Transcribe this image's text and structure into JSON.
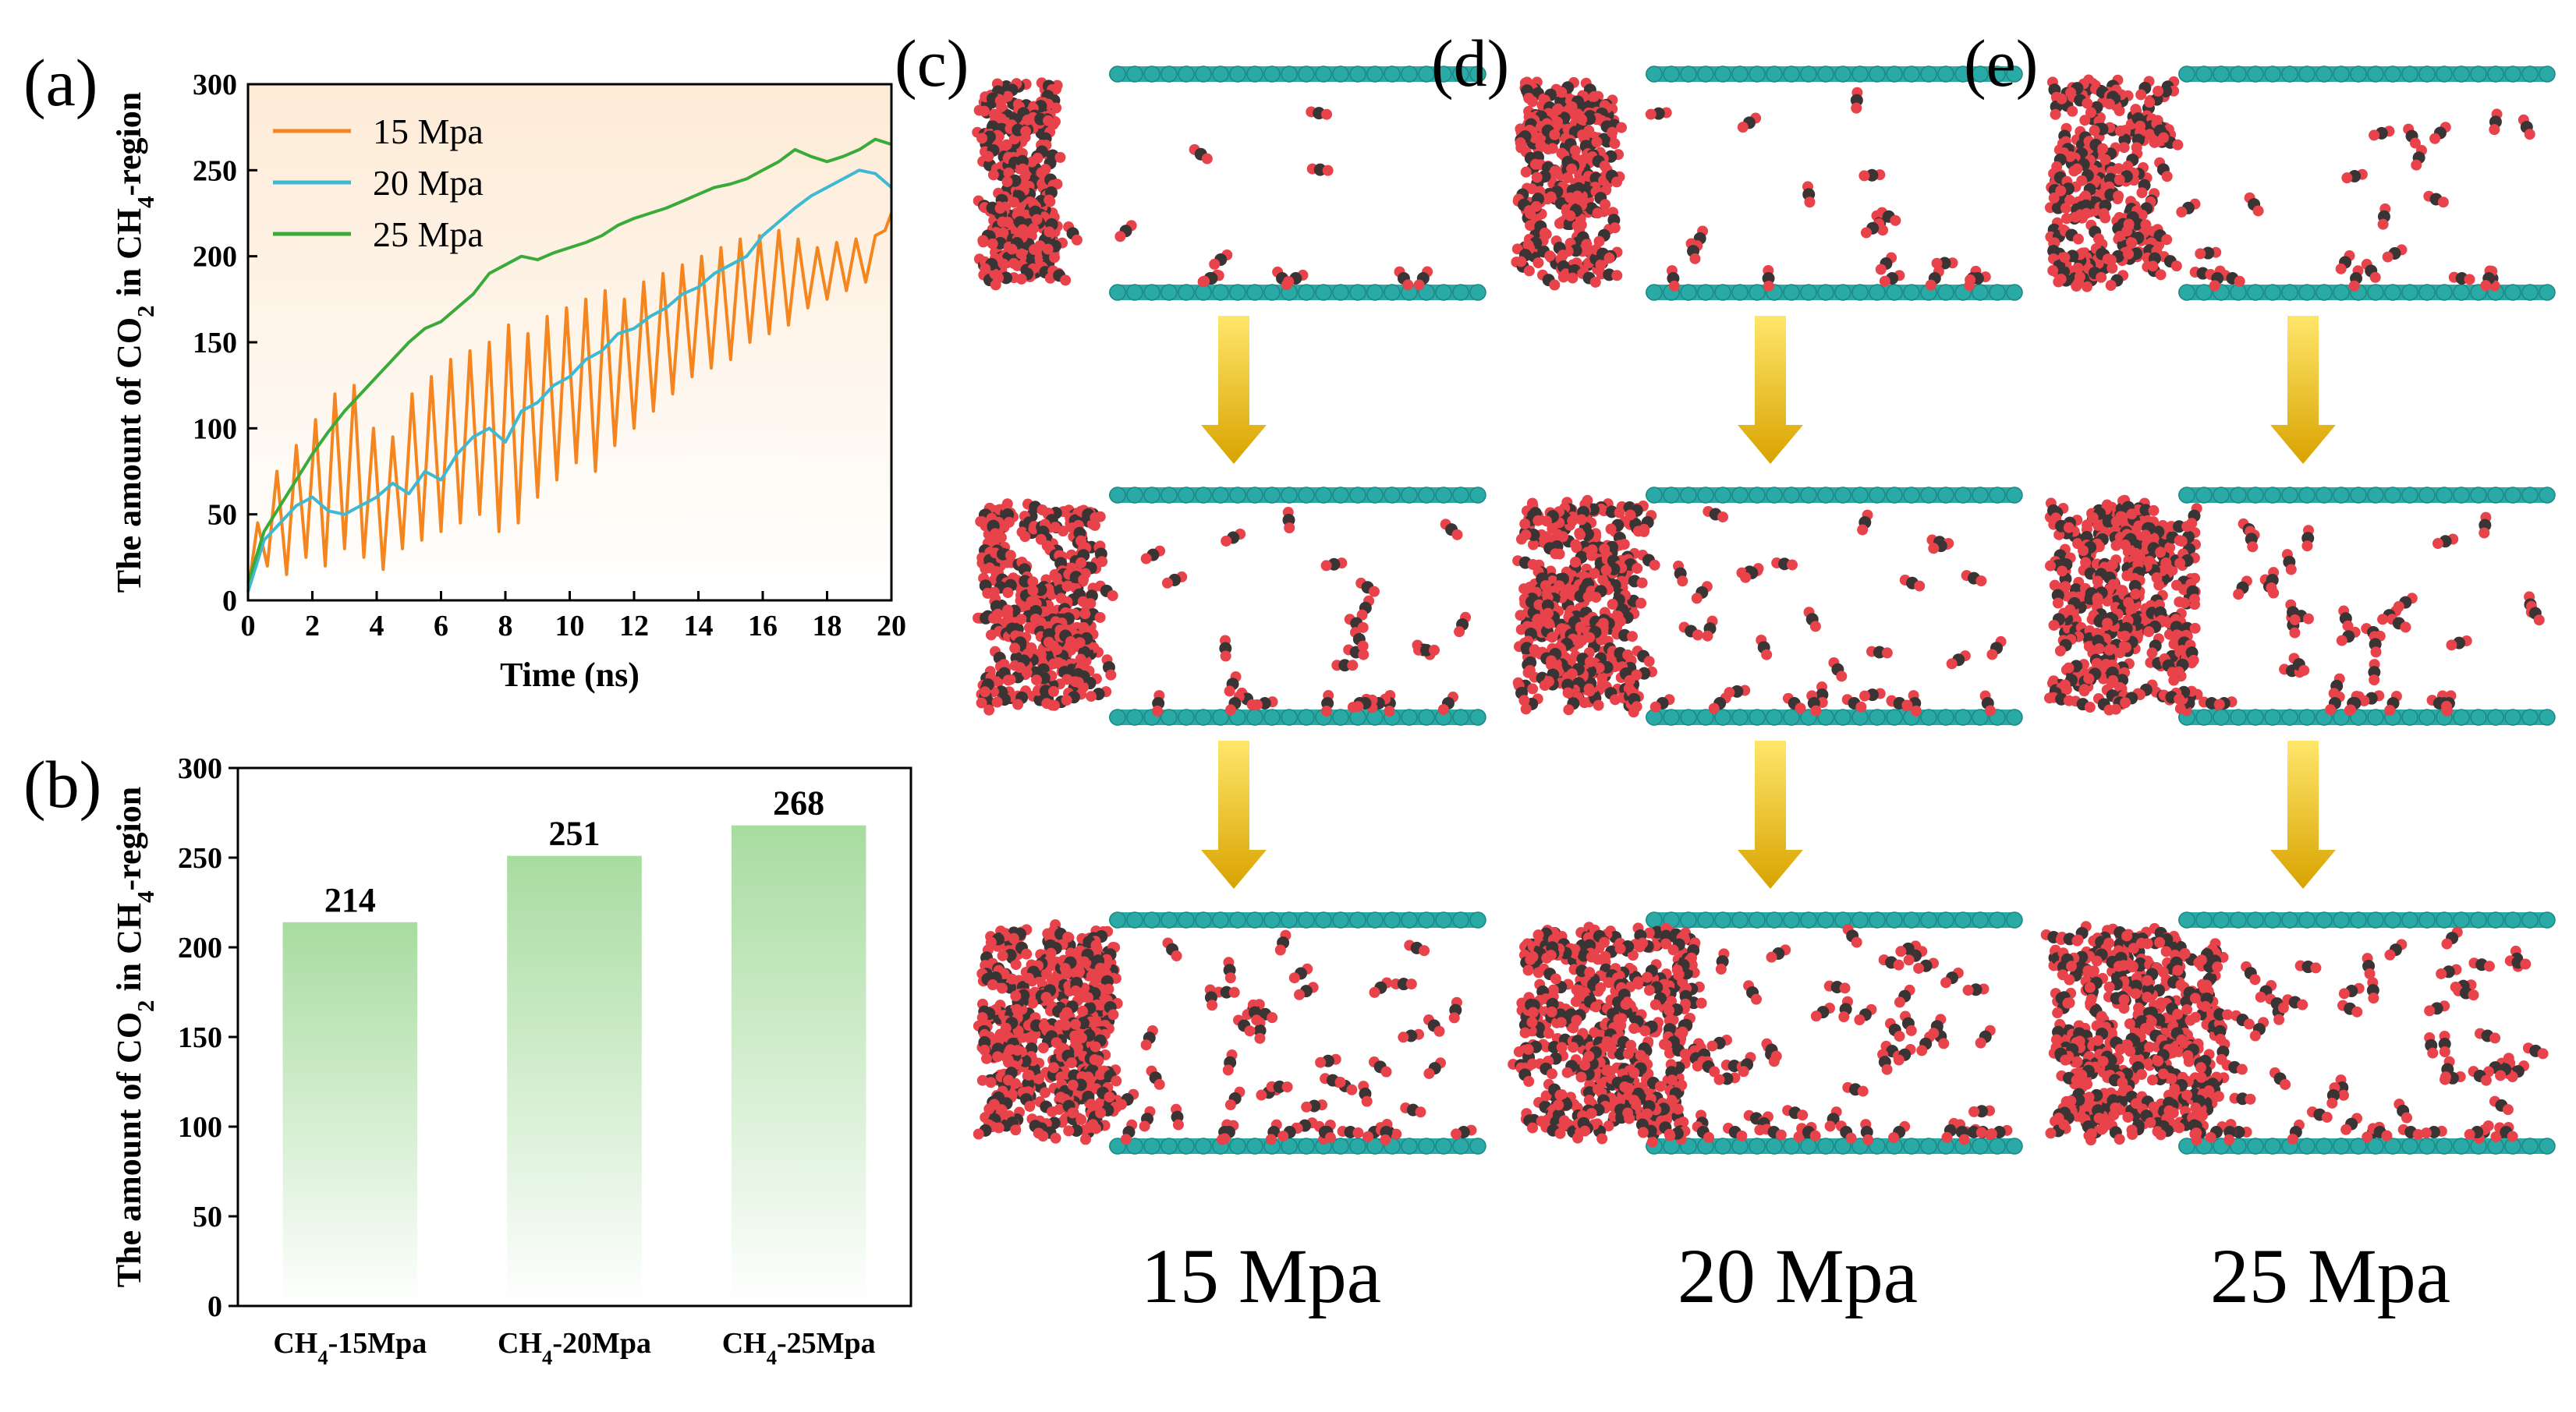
{
  "panel_labels": {
    "a": "(a)",
    "b": "(b)",
    "c": "(c)",
    "d": "(d)",
    "e": "(e)"
  },
  "colors": {
    "s15": "#f5851f",
    "s20": "#3fb8d1",
    "s25": "#3aab3a",
    "bar_top": "#a8dca0",
    "membrane": "#2aaaa6",
    "co2_carbon": "#3a3434",
    "co2_oxygen": "#e8424a",
    "arrow_top": "#ffe66b",
    "arrow_bottom": "#d9a300"
  },
  "snapshot_columns": [
    {
      "letter": "(c)",
      "pressure_label": "15 Mpa"
    },
    {
      "letter": "(d)",
      "pressure_label": "20 Mpa"
    },
    {
      "letter": "(e)",
      "pressure_label": "25 Mpa"
    }
  ],
  "chart_data": [
    {
      "type": "line",
      "panel": "(a)",
      "xlabel": "Time (ns)",
      "ylabel": "The amount of CO<sub>2</sub> in CH<sub>4</sub>-region",
      "xlim": [
        0,
        20
      ],
      "ylim": [
        0,
        300
      ],
      "xticks": [
        0,
        2,
        4,
        6,
        8,
        10,
        12,
        14,
        16,
        18,
        20
      ],
      "yticks": [
        0,
        50,
        100,
        150,
        200,
        250,
        300
      ],
      "legend_position": "top-left",
      "series": [
        {
          "name": "15 Mpa",
          "color_key": "s15",
          "x": [
            0,
            0.3,
            0.6,
            0.9,
            1.2,
            1.5,
            1.8,
            2.1,
            2.4,
            2.7,
            3.0,
            3.3,
            3.6,
            3.9,
            4.2,
            4.5,
            4.8,
            5.1,
            5.4,
            5.7,
            6.0,
            6.3,
            6.6,
            6.9,
            7.2,
            7.5,
            7.8,
            8.1,
            8.4,
            8.7,
            9.0,
            9.3,
            9.6,
            9.9,
            10.2,
            10.5,
            10.8,
            11.1,
            11.4,
            11.7,
            12.0,
            12.3,
            12.6,
            12.9,
            13.2,
            13.5,
            13.8,
            14.1,
            14.4,
            14.7,
            15.0,
            15.3,
            15.6,
            15.9,
            16.2,
            16.5,
            16.8,
            17.1,
            17.4,
            17.7,
            18.0,
            18.3,
            18.6,
            18.9,
            19.2,
            19.5,
            19.8,
            20.0
          ],
          "y": [
            5,
            45,
            20,
            75,
            15,
            90,
            25,
            105,
            20,
            120,
            30,
            125,
            25,
            100,
            18,
            95,
            30,
            120,
            35,
            130,
            40,
            140,
            45,
            145,
            50,
            150,
            40,
            160,
            45,
            155,
            60,
            165,
            70,
            170,
            80,
            175,
            75,
            180,
            90,
            175,
            100,
            185,
            110,
            190,
            120,
            195,
            130,
            200,
            135,
            205,
            140,
            210,
            150,
            212,
            155,
            215,
            160,
            210,
            170,
            205,
            175,
            208,
            180,
            210,
            185,
            212,
            215,
            225
          ]
        },
        {
          "name": "20 Mpa",
          "color_key": "s20",
          "x": [
            0,
            0.5,
            1.0,
            1.5,
            2.0,
            2.5,
            3.0,
            3.5,
            4.0,
            4.5,
            5.0,
            5.5,
            6.0,
            6.5,
            7.0,
            7.5,
            8.0,
            8.5,
            9.0,
            9.5,
            10.0,
            10.5,
            11.0,
            11.5,
            12.0,
            12.5,
            13.0,
            13.5,
            14.0,
            14.5,
            15.0,
            15.5,
            16.0,
            16.5,
            17.0,
            17.5,
            18.0,
            18.5,
            19.0,
            19.5,
            20.0
          ],
          "y": [
            5,
            35,
            45,
            55,
            60,
            52,
            50,
            55,
            60,
            68,
            62,
            75,
            70,
            85,
            95,
            100,
            92,
            110,
            115,
            125,
            130,
            140,
            145,
            155,
            158,
            165,
            170,
            178,
            182,
            190,
            195,
            200,
            212,
            220,
            228,
            235,
            240,
            245,
            250,
            248,
            240
          ]
        },
        {
          "name": "25 Mpa",
          "color_key": "s25",
          "x": [
            0,
            0.5,
            1.0,
            1.5,
            2.0,
            2.5,
            3.0,
            3.5,
            4.0,
            4.5,
            5.0,
            5.5,
            6.0,
            6.5,
            7.0,
            7.5,
            8.0,
            8.5,
            9.0,
            9.5,
            10.0,
            10.5,
            11.0,
            11.5,
            12.0,
            12.5,
            13.0,
            13.5,
            14.0,
            14.5,
            15.0,
            15.5,
            16.0,
            16.5,
            17.0,
            17.5,
            18.0,
            18.5,
            19.0,
            19.5,
            20.0
          ],
          "y": [
            10,
            40,
            55,
            70,
            85,
            98,
            110,
            120,
            130,
            140,
            150,
            158,
            162,
            170,
            178,
            190,
            195,
            200,
            198,
            202,
            205,
            208,
            212,
            218,
            222,
            225,
            228,
            232,
            236,
            240,
            242,
            245,
            250,
            255,
            262,
            258,
            255,
            258,
            262,
            268,
            265
          ]
        }
      ]
    },
    {
      "type": "bar",
      "panel": "(b)",
      "ylabel": "The amount of CO<sub>2</sub> in CH<sub>4</sub>-region",
      "categories": [
        "CH<sub>4</sub>-15Mpa",
        "CH<sub>4</sub>-20Mpa",
        "CH<sub>4</sub>-25Mpa"
      ],
      "values": [
        214,
        251,
        268
      ],
      "data_labels": [
        "214",
        "251",
        "268"
      ],
      "ylim": [
        0,
        300
      ],
      "yticks": [
        0,
        50,
        100,
        150,
        200,
        250,
        300
      ]
    }
  ]
}
